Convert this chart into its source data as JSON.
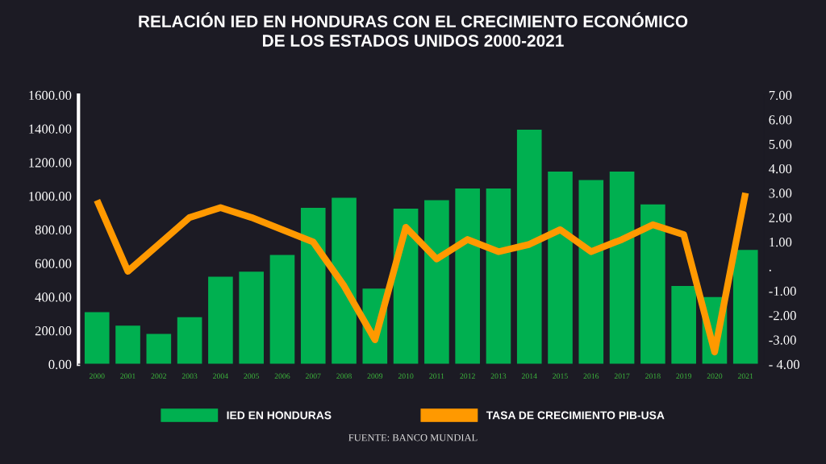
{
  "chart_data": {
    "type": "bar",
    "title": "RELACIÓN IED EN HONDURAS CON EL CRECIMIENTO ECONÓMICO\nDE LOS ESTADOS UNIDOS 2000-2021",
    "categories": [
      "2000",
      "2001",
      "2002",
      "2003",
      "2004",
      "2005",
      "2006",
      "2007",
      "2008",
      "2009",
      "2010",
      "2011",
      "2012",
      "2013",
      "2014",
      "2015",
      "2016",
      "2017",
      "2018",
      "2019",
      "2020",
      "2021"
    ],
    "series": [
      {
        "name": "IED EN HONDURAS",
        "color": "#00b050",
        "values": [
          310,
          230,
          180,
          280,
          520,
          550,
          650,
          930,
          990,
          450,
          925,
          975,
          1045,
          1045,
          1395,
          1145,
          1095,
          1145,
          950,
          465,
          400,
          680
        ]
      },
      {
        "name": "TASA DE CRECIMIENTO PIB-USA",
        "type": "line",
        "axis": "y2",
        "color": "#ff9900",
        "values": [
          2.7,
          -0.2,
          0.9,
          2.0,
          2.4,
          2.0,
          1.5,
          1.0,
          -0.8,
          -3.0,
          1.6,
          0.3,
          1.1,
          0.6,
          0.9,
          1.5,
          0.6,
          1.1,
          1.7,
          1.3,
          -3.5,
          3.0
        ]
      }
    ],
    "ylim": [
      0,
      1600
    ],
    "yticks": [
      {
        "value": 0,
        "label": "0.00"
      },
      {
        "value": 200,
        "label": "200.00"
      },
      {
        "value": 400,
        "label": "400.00"
      },
      {
        "value": 600,
        "label": "600.00"
      },
      {
        "value": 800,
        "label": "800.00"
      },
      {
        "value": 1000,
        "label": "1000.00"
      },
      {
        "value": 1200,
        "label": "1200.00"
      },
      {
        "value": 1400,
        "label": "1400.00"
      },
      {
        "value": 1600,
        "label": "1600.00"
      }
    ],
    "y2lim": [
      -4,
      7
    ],
    "y2ticks": [
      {
        "value": -4,
        "label": "- 4.00"
      },
      {
        "value": -3,
        "label": "-3.00"
      },
      {
        "value": -2,
        "label": "-2.00"
      },
      {
        "value": -1,
        "label": "-1.00"
      },
      {
        "value": 0,
        "label": "."
      },
      {
        "value": 1,
        "label": "1.00"
      },
      {
        "value": 2,
        "label": "2.00"
      },
      {
        "value": 3,
        "label": "3.00"
      },
      {
        "value": 4,
        "label": "4.00"
      },
      {
        "value": 5,
        "label": "5.00"
      },
      {
        "value": 6,
        "label": "6.00"
      },
      {
        "value": 7,
        "label": "7.00"
      }
    ],
    "legend": "bottom",
    "grid": false,
    "annotations": [
      "FUENTE: BANCO MUNDIAL"
    ]
  }
}
